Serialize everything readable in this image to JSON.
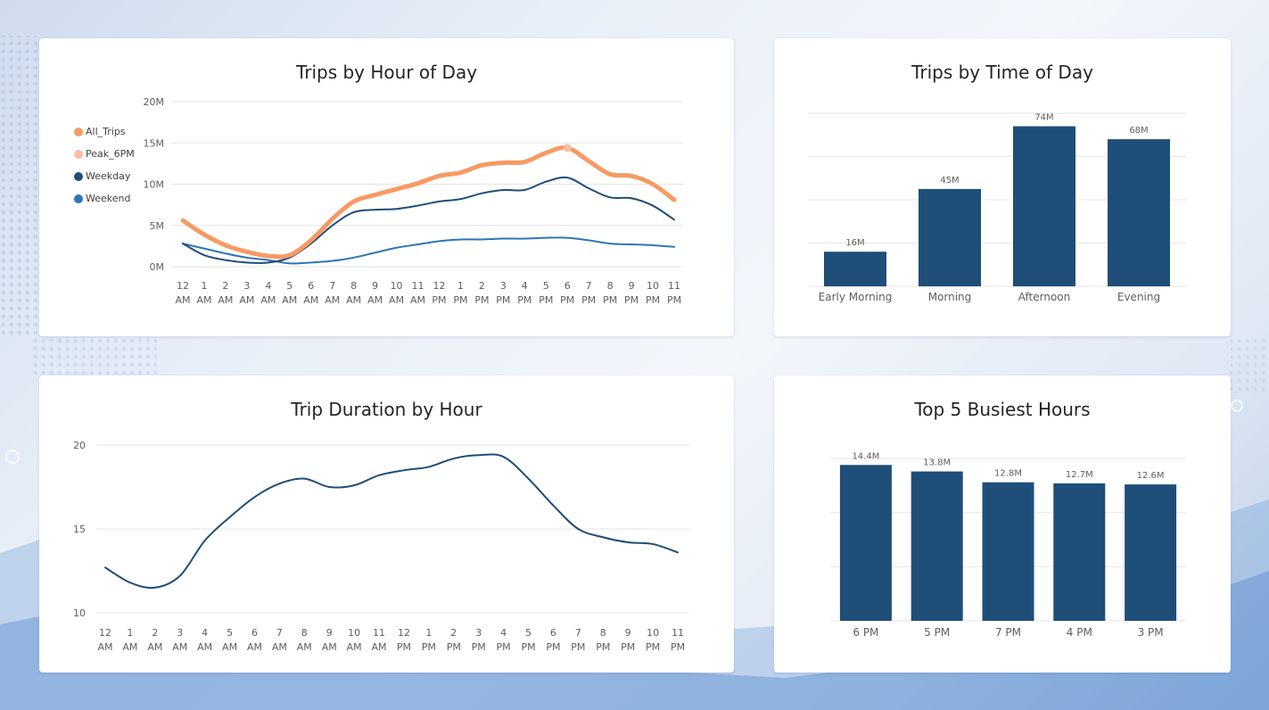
{
  "chart_data": [
    {
      "type": "line",
      "title": "Trips by Hour of Day",
      "yticks": [
        "20M",
        "15M",
        "10M",
        "5M",
        "0M"
      ],
      "ylim": [
        0,
        20
      ],
      "y_unit": "M",
      "categories": [
        [
          "12",
          "AM"
        ],
        [
          "1",
          "AM"
        ],
        [
          "2",
          "AM"
        ],
        [
          "3",
          "AM"
        ],
        [
          "4",
          "AM"
        ],
        [
          "5",
          "AM"
        ],
        [
          "6",
          "AM"
        ],
        [
          "7",
          "AM"
        ],
        [
          "8",
          "AM"
        ],
        [
          "9",
          "AM"
        ],
        [
          "10",
          "AM"
        ],
        [
          "11",
          "AM"
        ],
        [
          "12",
          "PM"
        ],
        [
          "1",
          "PM"
        ],
        [
          "2",
          "PM"
        ],
        [
          "3",
          "PM"
        ],
        [
          "4",
          "PM"
        ],
        [
          "5",
          "PM"
        ],
        [
          "6",
          "PM"
        ],
        [
          "7",
          "PM"
        ],
        [
          "8",
          "PM"
        ],
        [
          "9",
          "PM"
        ],
        [
          "10",
          "PM"
        ],
        [
          "11",
          "PM"
        ]
      ],
      "legend_position": "left",
      "series": [
        {
          "name": "All_Trips",
          "color": "#F79A63",
          "values": [
            5.6,
            3.9,
            2.6,
            1.8,
            1.3,
            1.4,
            3.2,
            5.8,
            7.9,
            8.7,
            9.4,
            10.1,
            11.0,
            11.4,
            12.3,
            12.6,
            12.7,
            13.8,
            14.4,
            12.8,
            11.2,
            11.0,
            10.0,
            8.1
          ]
        },
        {
          "name": "Peak_6PM",
          "color": "#F8BFA5",
          "values": [
            null,
            null,
            null,
            null,
            null,
            null,
            null,
            null,
            null,
            null,
            null,
            null,
            null,
            null,
            null,
            null,
            null,
            null,
            14.4,
            null,
            null,
            null,
            null,
            null
          ]
        },
        {
          "name": "Weekday",
          "color": "#1F4E79",
          "values": [
            2.8,
            1.4,
            0.8,
            0.5,
            0.5,
            1.1,
            2.8,
            5.0,
            6.6,
            6.9,
            7.0,
            7.4,
            7.9,
            8.2,
            8.9,
            9.3,
            9.3,
            10.3,
            10.8,
            9.5,
            8.4,
            8.3,
            7.4,
            5.7
          ]
        },
        {
          "name": "Weekend",
          "color": "#2E75B6",
          "values": [
            2.8,
            2.2,
            1.6,
            1.1,
            0.8,
            0.4,
            0.5,
            0.7,
            1.1,
            1.7,
            2.3,
            2.7,
            3.1,
            3.3,
            3.3,
            3.4,
            3.4,
            3.5,
            3.5,
            3.2,
            2.8,
            2.7,
            2.6,
            2.4
          ]
        }
      ]
    },
    {
      "type": "bar",
      "title": "Trips by Time of Day",
      "categories": [
        "Early Morning",
        "Morning",
        "Afternoon",
        "Evening"
      ],
      "values": [
        16,
        45,
        74,
        68
      ],
      "data_labels": [
        "16M",
        "45M",
        "74M",
        "68M"
      ],
      "ylim": [
        0,
        80
      ],
      "gridlines": 5,
      "color": "#1F4E79"
    },
    {
      "type": "line",
      "title": "Trip Duration by Hour",
      "yticks": [
        "20",
        "15",
        "10"
      ],
      "ylim": [
        10,
        20
      ],
      "categories": [
        [
          "12",
          "AM"
        ],
        [
          "1",
          "AM"
        ],
        [
          "2",
          "AM"
        ],
        [
          "3",
          "AM"
        ],
        [
          "4",
          "AM"
        ],
        [
          "5",
          "AM"
        ],
        [
          "6",
          "AM"
        ],
        [
          "7",
          "AM"
        ],
        [
          "8",
          "AM"
        ],
        [
          "9",
          "AM"
        ],
        [
          "10",
          "AM"
        ],
        [
          "11",
          "AM"
        ],
        [
          "12",
          "PM"
        ],
        [
          "1",
          "PM"
        ],
        [
          "2",
          "PM"
        ],
        [
          "3",
          "PM"
        ],
        [
          "4",
          "PM"
        ],
        [
          "5",
          "PM"
        ],
        [
          "6",
          "PM"
        ],
        [
          "7",
          "PM"
        ],
        [
          "8",
          "PM"
        ],
        [
          "9",
          "PM"
        ],
        [
          "10",
          "PM"
        ],
        [
          "11",
          "PM"
        ]
      ],
      "series": [
        {
          "color": "#1F4E79",
          "values": [
            12.7,
            11.8,
            11.5,
            12.2,
            14.3,
            15.7,
            16.9,
            17.7,
            18.0,
            17.5,
            17.6,
            18.2,
            18.5,
            18.7,
            19.2,
            19.4,
            19.3,
            18.0,
            16.4,
            15.0,
            14.5,
            14.2,
            14.1,
            13.6
          ]
        }
      ]
    },
    {
      "type": "bar",
      "title": "Top 5 Busiest Hours",
      "categories": [
        "6 PM",
        "5 PM",
        "7 PM",
        "4 PM",
        "3 PM"
      ],
      "values": [
        14.4,
        13.8,
        12.8,
        12.7,
        12.6
      ],
      "data_labels": [
        "14.4M",
        "13.8M",
        "12.8M",
        "12.7M",
        "12.6M"
      ],
      "ylim": [
        0,
        15
      ],
      "gridlines": 4,
      "color": "#1F4E79"
    }
  ]
}
